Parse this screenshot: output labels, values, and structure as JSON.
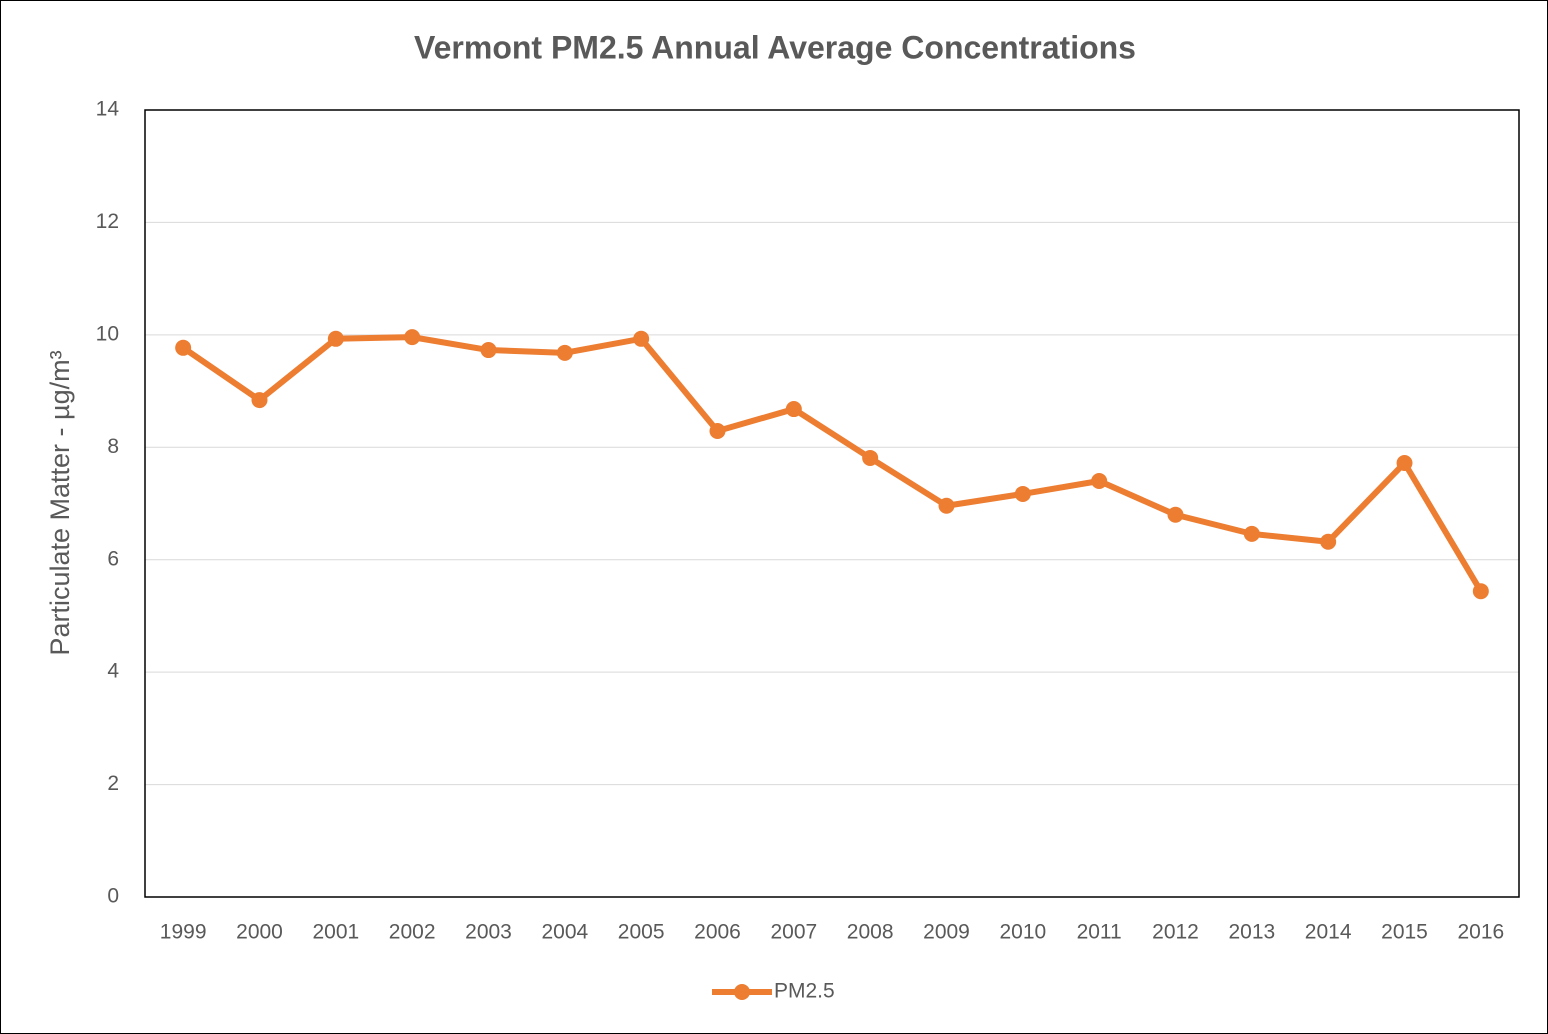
{
  "chart_data": {
    "type": "line",
    "title": "Vermont PM2.5 Annual Average Concentrations",
    "y_label": "Particulate Matter - µg/m³",
    "categories": [
      "1999",
      "2000",
      "2001",
      "2002",
      "2003",
      "2004",
      "2005",
      "2006",
      "2007",
      "2008",
      "2009",
      "2010",
      "2011",
      "2012",
      "2013",
      "2014",
      "2015",
      "2016"
    ],
    "series": [
      {
        "name": "PM2.5",
        "color": "#ed7d31",
        "values": [
          9.77,
          8.84,
          9.93,
          9.96,
          9.73,
          9.68,
          9.93,
          8.29,
          8.68,
          7.81,
          6.96,
          7.17,
          7.4,
          6.8,
          6.46,
          6.32,
          7.72,
          5.44
        ]
      }
    ],
    "ylim": [
      0,
      14
    ],
    "yticks": [
      0,
      2,
      4,
      6,
      8,
      10,
      12,
      14
    ],
    "grid": true,
    "legend": "bottom"
  }
}
